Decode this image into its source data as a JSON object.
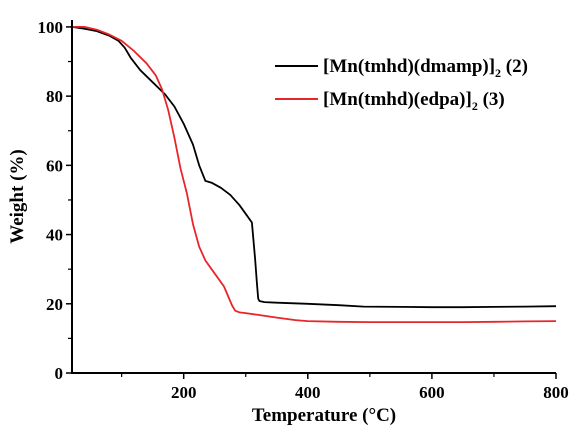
{
  "chart_data": {
    "type": "line",
    "xlabel": "Temperature (°C)",
    "ylabel": "Weight (%)",
    "xlim": [
      20,
      800
    ],
    "ylim": [
      0,
      102
    ],
    "xticks": [
      200,
      400,
      600,
      800
    ],
    "yticks": [
      0,
      20,
      40,
      60,
      80,
      100
    ],
    "grid": false,
    "legend_position": "top-right",
    "series": [
      {
        "name": "[Mn(tmhd)(dmamp)]2 (2)",
        "legend_main": "[Mn(tmhd)(dmamp)]",
        "legend_sub": "2",
        "legend_tail": " (2)",
        "color": "#000000",
        "x": [
          20,
          40,
          60,
          80,
          95,
          105,
          115,
          130,
          150,
          170,
          185,
          200,
          215,
          225,
          235,
          245,
          260,
          275,
          290,
          300,
          310,
          315,
          318,
          320,
          322,
          330,
          350,
          400,
          450,
          490,
          550,
          600,
          650,
          700,
          750,
          800
        ],
        "y": [
          100,
          99.5,
          98.8,
          97.5,
          96,
          94,
          91,
          87.5,
          84,
          80.5,
          77,
          72,
          66,
          60,
          55.5,
          55,
          53.5,
          51.5,
          48.5,
          46,
          43.5,
          33,
          26,
          21.5,
          20.8,
          20.5,
          20.3,
          20,
          19.6,
          19.2,
          19.1,
          19,
          19,
          19.1,
          19.2,
          19.3
        ]
      },
      {
        "name": "[Mn(tmhd)(edpa)]2 (3)",
        "legend_main": "[Mn(tmhd)(edpa)]",
        "legend_sub": "2",
        "legend_tail": " (3)",
        "color": "#e8262a",
        "x": [
          20,
          40,
          60,
          80,
          100,
          120,
          140,
          155,
          165,
          175,
          185,
          195,
          205,
          215,
          225,
          235,
          245,
          255,
          265,
          272,
          278,
          283,
          290,
          300,
          320,
          350,
          380,
          400,
          450,
          500,
          550,
          600,
          650,
          700,
          750,
          800
        ],
        "y": [
          100,
          100,
          99.2,
          97.8,
          96,
          93,
          89.5,
          86,
          82,
          76,
          68,
          59,
          52,
          43,
          36.5,
          32.5,
          30,
          27.5,
          25,
          22,
          19.5,
          18,
          17.5,
          17.3,
          16.8,
          16,
          15.3,
          15,
          14.8,
          14.7,
          14.7,
          14.7,
          14.7,
          14.8,
          14.9,
          15
        ]
      }
    ]
  }
}
